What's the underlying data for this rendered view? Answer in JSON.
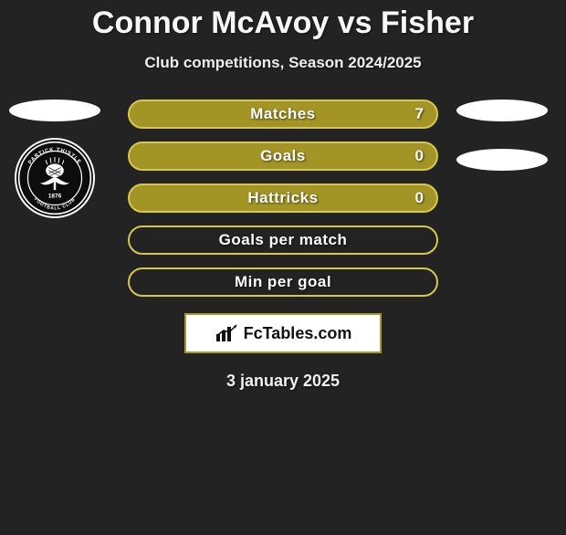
{
  "title": "Connor McAvoy vs Fisher",
  "subtitle": "Club competitions, Season 2024/2025",
  "date": "3 january 2025",
  "logo_text": "FcTables.com",
  "colors": {
    "bg": "#232323",
    "bar_fill": "#a39426",
    "bar_border": "#d6c84e",
    "bar_empty_fill": "#232323",
    "oval": "#ffffff",
    "logo_border": "#a69a2e",
    "title": "#f7f7f7",
    "subtitle": "#eeeeee"
  },
  "stats": [
    {
      "label": "Matches",
      "value": "7",
      "filled": true
    },
    {
      "label": "Goals",
      "value": "0",
      "filled": true
    },
    {
      "label": "Hattricks",
      "value": "0",
      "filled": true
    },
    {
      "label": "Goals per match",
      "value": "",
      "filled": false
    },
    {
      "label": "Min per goal",
      "value": "",
      "filled": false
    }
  ],
  "left_badge": {
    "name": "club-badge-partick-thistle",
    "ring_text_top": "PARTICK THISTLE",
    "ring_text_bottom": "FOOTBALL CLUB",
    "year": "1876"
  }
}
